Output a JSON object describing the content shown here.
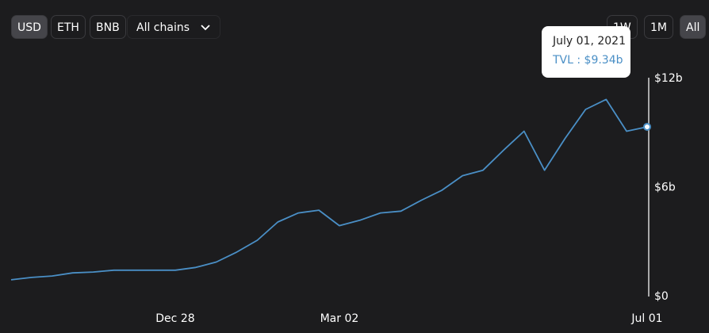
{
  "controls": {
    "currencies": [
      "USD",
      "ETH",
      "BNB"
    ],
    "chain_select": "All chains",
    "ranges": [
      "1W",
      "1M",
      "All"
    ]
  },
  "chart_data": {
    "type": "line",
    "categories": [
      null,
      null,
      null,
      null,
      null,
      null,
      null,
      null,
      "Dec 28",
      null,
      null,
      null,
      null,
      null,
      null,
      null,
      "Mar 02",
      null,
      null,
      null,
      null,
      null,
      null,
      null,
      null,
      null,
      null,
      null,
      null,
      null,
      null,
      "Jul 01"
    ],
    "series": [
      {
        "name": "TVL",
        "color": "#4a8fc6",
        "values": [
          0.92,
          1.05,
          1.13,
          1.3,
          1.35,
          1.45,
          1.45,
          1.45,
          1.45,
          1.6,
          1.9,
          2.45,
          3.1,
          4.1,
          4.6,
          4.75,
          3.9,
          4.2,
          4.6,
          4.7,
          5.3,
          5.85,
          6.65,
          6.95,
          8.05,
          9.1,
          6.95,
          8.7,
          10.3,
          10.85,
          9.1,
          9.34
        ]
      }
    ],
    "ylim": [
      0,
      12
    ],
    "yticks": [
      {
        "value": 0,
        "label": "$0"
      },
      {
        "value": 6,
        "label": "$6b"
      },
      {
        "value": 12,
        "label": "$12b"
      }
    ],
    "tooltip": {
      "title": "July 01, 2021",
      "text": "TVL : $9.34b"
    }
  }
}
